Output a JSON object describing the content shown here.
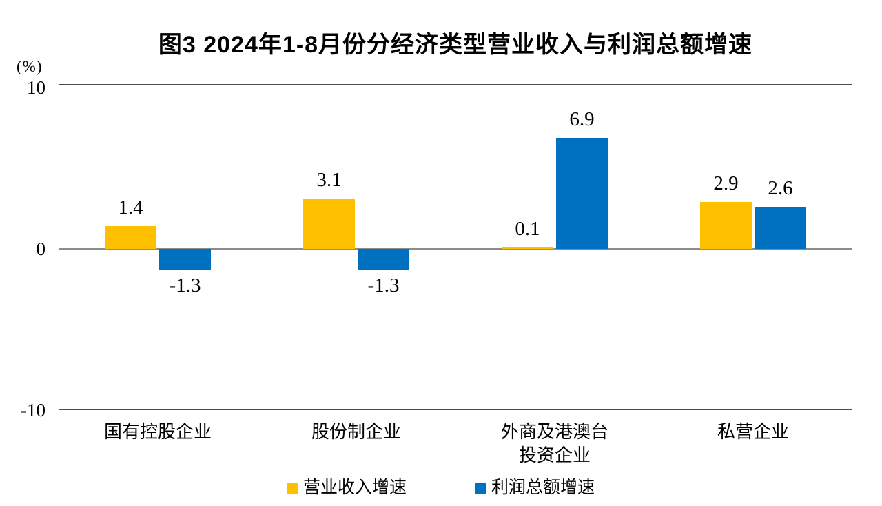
{
  "chart_data": {
    "type": "bar",
    "title": "图3  2024年1-8月份分经济类型营业收入与利润总额增速",
    "unit_label": "(%)",
    "categories": [
      "国有控股企业",
      "股份制企业",
      "外商及港澳台\n投资企业",
      "私营企业"
    ],
    "series": [
      {
        "name": "营业收入增速",
        "color": "#FFC000",
        "values": [
          1.4,
          3.1,
          0.1,
          2.9
        ]
      },
      {
        "name": "利润总额增速",
        "color": "#0070C0",
        "values": [
          -1.3,
          -1.3,
          6.9,
          2.6
        ]
      }
    ],
    "data_labels": [
      [
        "1.4",
        "3.1",
        "0.1",
        "2.9"
      ],
      [
        "-1.3",
        "-1.3",
        "6.9",
        "2.6"
      ]
    ],
    "ylim": [
      -10,
      10
    ],
    "yticks": [
      {
        "value": 10,
        "label": "10"
      },
      {
        "value": 0,
        "label": "0"
      },
      {
        "value": -10,
        "label": "-10"
      }
    ],
    "grid": false,
    "legend_position": "bottom",
    "axis_border_color": "#4d4d4d",
    "zero_line_color": "#8c8c8c"
  }
}
